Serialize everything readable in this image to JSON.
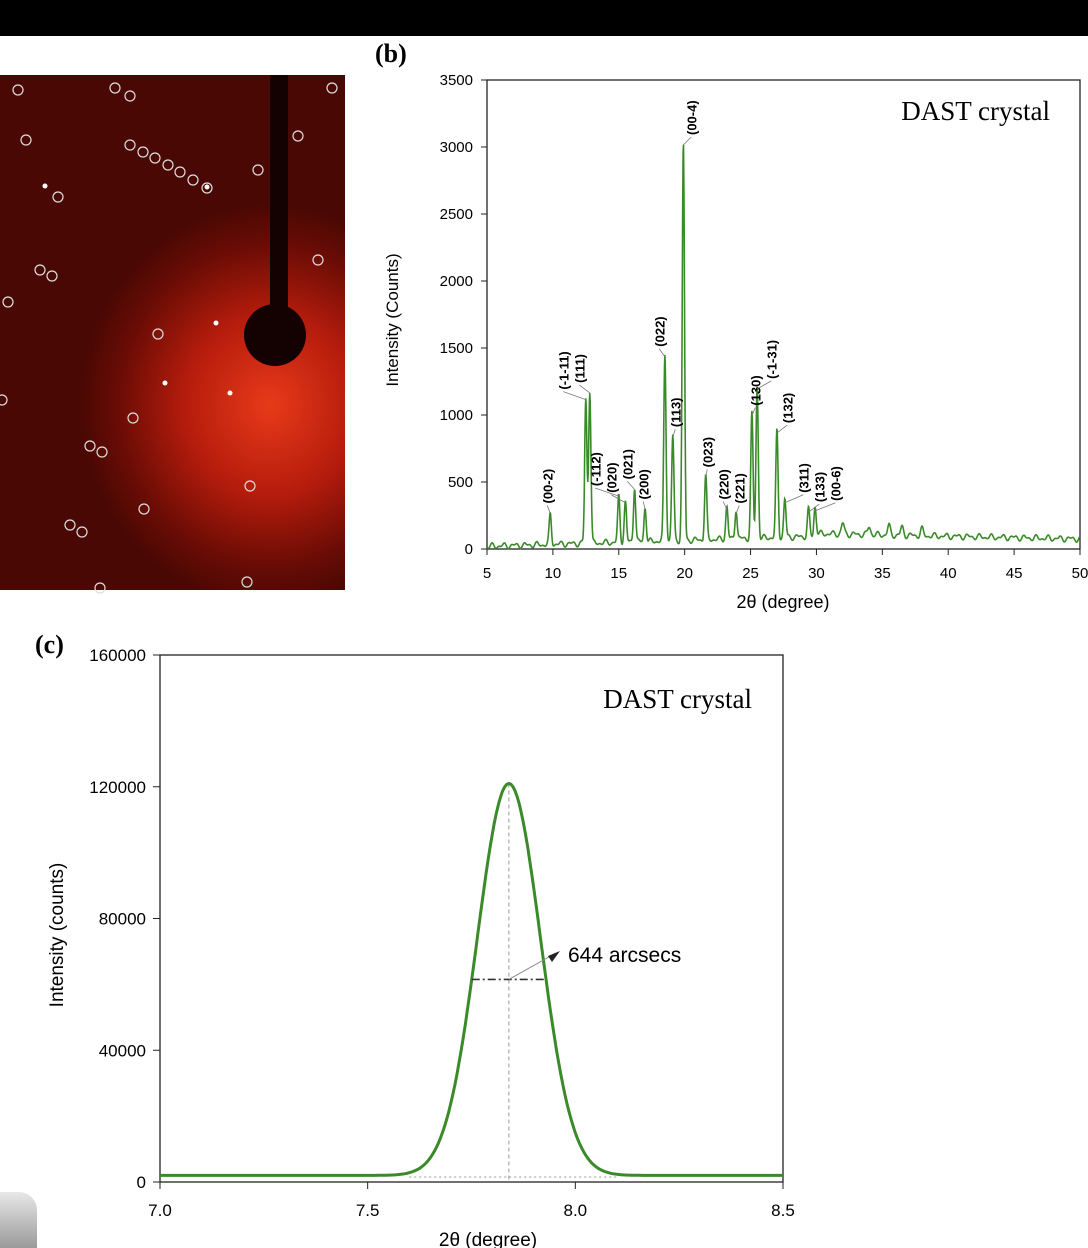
{
  "chart_data": [
    {
      "panel_label": "(b)",
      "type": "line",
      "annotation": "DAST crystal",
      "xlabel": "2θ (degree)",
      "ylabel": "Intensity (Counts)",
      "xlim": [
        5,
        50
      ],
      "ylim": [
        0,
        3500
      ],
      "xticks": [
        5,
        10,
        15,
        20,
        25,
        30,
        35,
        40,
        45,
        50
      ],
      "yticks": [
        0,
        500,
        1000,
        1500,
        2000,
        2500,
        3000,
        3500
      ],
      "color": "#3a8a2a",
      "peaks": [
        {
          "label": "(00-2)",
          "x": 9.8,
          "y": 250
        },
        {
          "label": "(-1-11)",
          "x": 12.5,
          "y": 1100
        },
        {
          "label": "(111)",
          "x": 12.8,
          "y": 1150
        },
        {
          "label": "(-112)",
          "x": 15.0,
          "y": 380
        },
        {
          "label": "(020)",
          "x": 15.5,
          "y": 330
        },
        {
          "label": "(021)",
          "x": 16.2,
          "y": 430
        },
        {
          "label": "(200)",
          "x": 17.0,
          "y": 280
        },
        {
          "label": "(022)",
          "x": 18.5,
          "y": 1420
        },
        {
          "label": "(113)",
          "x": 19.1,
          "y": 820
        },
        {
          "label": "(00-4)",
          "x": 19.9,
          "y": 3000
        },
        {
          "label": "(023)",
          "x": 21.6,
          "y": 520
        },
        {
          "label": "(220)",
          "x": 23.2,
          "y": 280
        },
        {
          "label": "(221)",
          "x": 23.9,
          "y": 250
        },
        {
          "label": "(130)",
          "x": 25.1,
          "y": 980
        },
        {
          "label": "(-1-31)",
          "x": 25.5,
          "y": 1180
        },
        {
          "label": "(132)",
          "x": 27.0,
          "y": 850
        },
        {
          "label": "(311)",
          "x": 27.6,
          "y": 330
        },
        {
          "label": "(133)",
          "x": 29.4,
          "y": 260
        },
        {
          "label": "(00-6)",
          "x": 29.9,
          "y": 270
        }
      ]
    },
    {
      "panel_label": "(c)",
      "type": "line",
      "annotation": "DAST crystal",
      "xlabel": "2θ (degree)",
      "ylabel": "Intensity (counts)",
      "xlim": [
        7.0,
        8.5
      ],
      "ylim": [
        0,
        160000
      ],
      "xticks": [
        "7.0",
        "7.5",
        "8.0",
        "8.5"
      ],
      "yticks": [
        "0",
        "40000",
        "80000",
        "120000",
        "160000"
      ],
      "color": "#3a8a2a",
      "peak_center": 7.84,
      "peak_height": 121000,
      "baseline": 2000,
      "fwhm_label": "644 arcsecs",
      "fwhm_arcsec": 644
    }
  ]
}
